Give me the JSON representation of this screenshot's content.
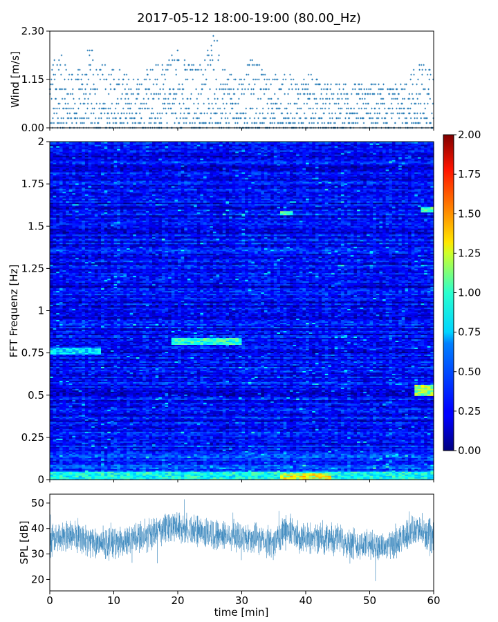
{
  "figure": {
    "title": "2017-05-12 18:00-19:00 (80.00_Hz)"
  },
  "chart_data": [
    {
      "id": "wind",
      "type": "scatter",
      "xlabel": "",
      "ylabel": "Wind [m/s]",
      "xlim": [
        0,
        60
      ],
      "ylim": [
        0,
        2.3
      ],
      "yticks": [
        0.0,
        1.15,
        2.3
      ],
      "ytick_labels": [
        "0.00",
        "1.15",
        "2.30"
      ],
      "xticks": [
        0,
        10,
        20,
        30,
        40,
        50,
        60
      ],
      "quantization_step": 0.115,
      "envelope_x": [
        0,
        2,
        4,
        6,
        8,
        10,
        12,
        14,
        16,
        18,
        19,
        20,
        21,
        22,
        24,
        25,
        26,
        27,
        28,
        30,
        32,
        34,
        36,
        38,
        40,
        42,
        44,
        46,
        48,
        50,
        52,
        54,
        56,
        57,
        58,
        60
      ],
      "envelope_max": [
        1.7,
        1.75,
        1.2,
        2.0,
        1.6,
        1.4,
        1.3,
        1.2,
        1.7,
        1.4,
        1.8,
        1.9,
        1.7,
        1.6,
        1.5,
        2.0,
        2.3,
        1.7,
        1.3,
        1.4,
        1.7,
        1.2,
        1.3,
        1.2,
        1.3,
        1.15,
        1.1,
        1.1,
        1.0,
        1.1,
        1.0,
        1.0,
        1.1,
        1.6,
        1.55,
        1.4
      ],
      "color": "#1f77b4"
    },
    {
      "id": "spectrogram",
      "type": "heatmap",
      "ylabel": "FFT Frequenz [Hz]",
      "xlim": [
        0,
        60
      ],
      "ylim": [
        0,
        2
      ],
      "yticks": [
        0,
        0.25,
        0.5,
        0.75,
        1,
        1.25,
        1.5,
        1.75,
        2
      ],
      "ytick_labels": [
        "0",
        "0.25",
        "0.5",
        "0.75",
        "1",
        "1.25",
        "1.5",
        "1.75",
        "2"
      ],
      "colormap": "jet",
      "clim": [
        0,
        2
      ],
      "colorbar_ticks": [
        0.0,
        0.25,
        0.5,
        0.75,
        1.0,
        1.25,
        1.5,
        1.75,
        2.0
      ],
      "colorbar_tick_labels": [
        "0.00",
        "0.25",
        "0.50",
        "0.75",
        "1.00",
        "1.25",
        "1.50",
        "1.75",
        "2.00"
      ],
      "background_level": 0.25,
      "features": [
        {
          "t_start": 0,
          "t_end": 60,
          "f_start": 0,
          "f_end": 0.05,
          "level": 0.8
        },
        {
          "t_start": 19,
          "t_end": 30,
          "f_start": 0.8,
          "f_end": 0.84,
          "level": 0.85
        },
        {
          "t_start": 0,
          "t_end": 8,
          "f_start": 0.74,
          "f_end": 0.78,
          "level": 0.7
        },
        {
          "t_start": 36,
          "t_end": 44,
          "f_start": 0,
          "f_end": 0.04,
          "level": 1.2
        },
        {
          "t_start": 57,
          "t_end": 60,
          "f_start": 0.5,
          "f_end": 0.56,
          "level": 1.1
        },
        {
          "t_start": 36,
          "t_end": 38,
          "f_start": 1.57,
          "f_end": 1.59,
          "level": 0.9
        },
        {
          "t_start": 58,
          "t_end": 60,
          "f_start": 1.58,
          "f_end": 1.62,
          "level": 0.9
        }
      ]
    },
    {
      "id": "spl",
      "type": "line",
      "xlabel": "time [min]",
      "ylabel": "SPL [dB]",
      "xlim": [
        0,
        60
      ],
      "ylim": [
        15.5,
        53.5
      ],
      "yticks": [
        20,
        30,
        40,
        50
      ],
      "xticks": [
        0,
        10,
        20,
        30,
        40,
        50,
        60
      ],
      "xtick_labels": [
        "0",
        "10",
        "20",
        "30",
        "40",
        "50",
        "60"
      ],
      "mean_x": [
        0,
        3,
        6,
        9,
        12,
        15,
        18,
        20,
        23,
        26,
        29,
        32,
        35,
        37,
        39,
        42,
        45,
        48,
        51,
        54,
        57,
        58,
        60
      ],
      "mean_y": [
        35,
        38,
        35,
        34,
        35,
        37,
        40,
        41,
        39,
        38,
        37,
        36,
        34,
        40,
        37,
        36,
        36,
        34,
        33,
        33,
        40,
        38,
        37
      ],
      "color": "#1f77b4"
    }
  ]
}
